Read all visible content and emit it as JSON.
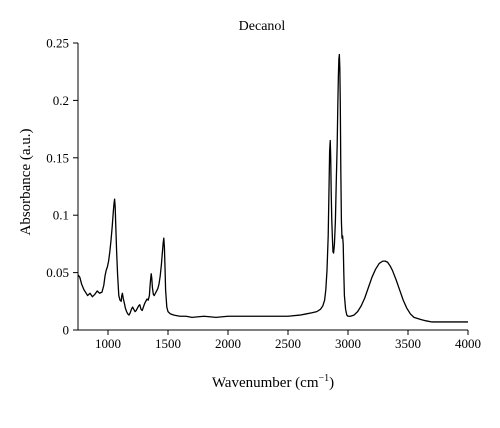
{
  "chart_data": {
    "type": "line",
    "title": "Decanol",
    "xlabel": "Wavenumber (cm",
    "xlabel_sup": "−1",
    "xlabel_close": ")",
    "ylabel": "Absorbance (a.u.)",
    "xlim": [
      750,
      4000
    ],
    "ylim": [
      0,
      0.25
    ],
    "grid": false,
    "legend": "none",
    "x_ticks": [
      1000,
      1500,
      2000,
      2500,
      3000,
      3500,
      4000
    ],
    "x_tick_labels": [
      "1000",
      "1500",
      "2000",
      "2500",
      "3000",
      "3500",
      "4000"
    ],
    "y_ticks": [
      0,
      0.05,
      0.1,
      0.15,
      0.2,
      0.25
    ],
    "y_tick_labels": [
      "0",
      "0.05",
      "0.1",
      "0.15",
      "0.2",
      "0.25"
    ],
    "line_color": "#000000",
    "series": [
      {
        "x": [
          750,
          765,
          780,
          800,
          830,
          850,
          870,
          890,
          910,
          930,
          950,
          965,
          975,
          985,
          995,
          1005,
          1015,
          1025,
          1035,
          1045,
          1050,
          1055,
          1060,
          1065,
          1072,
          1080,
          1090,
          1100,
          1110,
          1115,
          1120,
          1128,
          1135,
          1145,
          1155,
          1165,
          1175,
          1185,
          1195,
          1205,
          1215,
          1225,
          1235,
          1245,
          1255,
          1265,
          1275,
          1285,
          1295,
          1305,
          1315,
          1325,
          1335,
          1345,
          1350,
          1355,
          1360,
          1365,
          1370,
          1378,
          1385,
          1395,
          1405,
          1415,
          1425,
          1435,
          1445,
          1455,
          1460,
          1465,
          1470,
          1475,
          1480,
          1490,
          1500,
          1520,
          1550,
          1600,
          1650,
          1700,
          1800,
          1900,
          2000,
          2100,
          2200,
          2300,
          2400,
          2500,
          2600,
          2650,
          2700,
          2740,
          2770,
          2790,
          2805,
          2815,
          2825,
          2835,
          2842,
          2847,
          2852,
          2856,
          2860,
          2865,
          2870,
          2875,
          2880,
          2887,
          2895,
          2902,
          2910,
          2915,
          2920,
          2924,
          2928,
          2932,
          2936,
          2940,
          2945,
          2950,
          2955,
          2960,
          2965,
          2970,
          2980,
          2990,
          3000,
          3020,
          3050,
          3080,
          3110,
          3140,
          3170,
          3200,
          3230,
          3260,
          3290,
          3310,
          3330,
          3350,
          3370,
          3400,
          3430,
          3460,
          3490,
          3520,
          3550,
          3580,
          3610,
          3650,
          3700,
          3750,
          3800,
          3850,
          3900,
          3950,
          4000
        ],
        "y": [
          0.048,
          0.046,
          0.04,
          0.035,
          0.03,
          0.032,
          0.029,
          0.031,
          0.034,
          0.032,
          0.033,
          0.039,
          0.047,
          0.052,
          0.055,
          0.06,
          0.068,
          0.078,
          0.09,
          0.104,
          0.11,
          0.114,
          0.107,
          0.09,
          0.068,
          0.048,
          0.03,
          0.026,
          0.025,
          0.03,
          0.032,
          0.027,
          0.024,
          0.019,
          0.016,
          0.014,
          0.013,
          0.015,
          0.018,
          0.02,
          0.018,
          0.016,
          0.017,
          0.019,
          0.021,
          0.022,
          0.018,
          0.017,
          0.02,
          0.023,
          0.025,
          0.027,
          0.026,
          0.03,
          0.038,
          0.044,
          0.049,
          0.045,
          0.037,
          0.031,
          0.03,
          0.032,
          0.034,
          0.036,
          0.04,
          0.047,
          0.057,
          0.07,
          0.076,
          0.08,
          0.072,
          0.055,
          0.035,
          0.02,
          0.016,
          0.014,
          0.013,
          0.012,
          0.012,
          0.011,
          0.012,
          0.011,
          0.012,
          0.012,
          0.012,
          0.012,
          0.012,
          0.012,
          0.013,
          0.014,
          0.015,
          0.016,
          0.018,
          0.021,
          0.026,
          0.035,
          0.052,
          0.082,
          0.125,
          0.156,
          0.165,
          0.15,
          0.12,
          0.095,
          0.08,
          0.068,
          0.067,
          0.075,
          0.095,
          0.128,
          0.162,
          0.195,
          0.222,
          0.236,
          0.24,
          0.228,
          0.195,
          0.14,
          0.095,
          0.08,
          0.082,
          0.075,
          0.05,
          0.03,
          0.018,
          0.013,
          0.012,
          0.012,
          0.013,
          0.016,
          0.021,
          0.028,
          0.037,
          0.046,
          0.053,
          0.058,
          0.06,
          0.06,
          0.059,
          0.056,
          0.052,
          0.044,
          0.035,
          0.026,
          0.019,
          0.014,
          0.011,
          0.01,
          0.009,
          0.008,
          0.007,
          0.007,
          0.007,
          0.007,
          0.007,
          0.007,
          0.007
        ]
      }
    ]
  }
}
